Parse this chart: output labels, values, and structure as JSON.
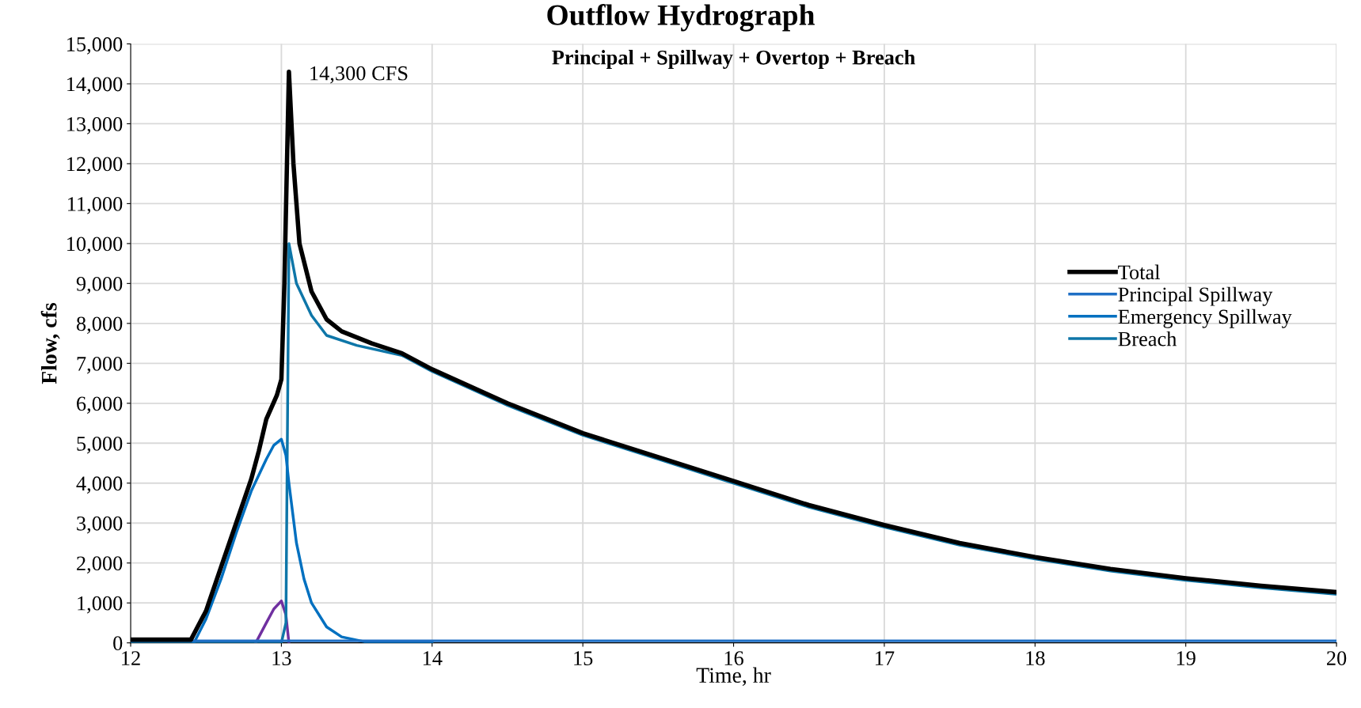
{
  "chart_data": {
    "type": "line",
    "title": "Outflow Hydrograph",
    "subtitle": "Principal + Spillway + Overtop + Breach",
    "xlabel": "Time, hr",
    "ylabel": "Flow, cfs",
    "xlim": [
      12,
      20
    ],
    "xticks": [
      12,
      13,
      14,
      15,
      16,
      17,
      18,
      19,
      20
    ],
    "ylim": [
      0,
      15000
    ],
    "yticks": [
      {
        "value": 0,
        "label": "0"
      },
      {
        "value": 1000,
        "label": "1,000"
      },
      {
        "value": 2000,
        "label": "2,000"
      },
      {
        "value": 3000,
        "label": "3,000"
      },
      {
        "value": 4000,
        "label": "4,000"
      },
      {
        "value": 5000,
        "label": "5,000"
      },
      {
        "value": 6000,
        "label": "6,000"
      },
      {
        "value": 7000,
        "label": "7,000"
      },
      {
        "value": 8000,
        "label": "8,000"
      },
      {
        "value": 9000,
        "label": "9,000"
      },
      {
        "value": 10000,
        "label": "10,000"
      },
      {
        "value": 11000,
        "label": "11,000"
      },
      {
        "value": 12000,
        "label": "12,000"
      },
      {
        "value": 13000,
        "label": "13,000"
      },
      {
        "value": 14000,
        "label": "14,000"
      },
      {
        "value": 15000,
        "label": "15,000"
      }
    ],
    "grid": true,
    "legend": "right",
    "marker": "none",
    "line_style": "solid",
    "annotations": [
      {
        "text": "14,300 CFS",
        "x": 13.05,
        "y": 14300
      }
    ],
    "series": [
      {
        "name": "Total",
        "color": "#000000",
        "x": [
          12,
          12.4,
          12.5,
          12.6,
          12.7,
          12.8,
          12.85,
          12.9,
          12.97,
          13.0,
          13.02,
          13.05,
          13.08,
          13.12,
          13.2,
          13.3,
          13.4,
          13.6,
          13.8,
          14,
          14.5,
          15,
          15.5,
          16,
          16.5,
          17,
          17.5,
          18,
          18.5,
          19,
          19.5,
          20
        ],
        "values": [
          80,
          80,
          800,
          1900,
          3000,
          4100,
          4800,
          5600,
          6200,
          6600,
          9000,
          14300,
          12000,
          10000,
          8800,
          8100,
          7800,
          7500,
          7250,
          6850,
          6000,
          5250,
          4650,
          4050,
          3450,
          2950,
          2500,
          2150,
          1850,
          1620,
          1430,
          1270
        ]
      },
      {
        "name": "Principal Spillway",
        "color": "#1f6fc5",
        "x": [
          12,
          13,
          14,
          16,
          18,
          20
        ],
        "values": [
          50,
          50,
          50,
          50,
          50,
          50
        ]
      },
      {
        "name": "Emergency Spillway",
        "color": "#0070c0",
        "x": [
          12.42,
          12.5,
          12.6,
          12.7,
          12.8,
          12.9,
          12.95,
          13.0,
          13.03,
          13.05,
          13.1,
          13.15,
          13.2,
          13.3,
          13.4,
          13.55,
          14
        ],
        "values": [
          0,
          600,
          1600,
          2750,
          3800,
          4600,
          4950,
          5100,
          4700,
          4000,
          2500,
          1600,
          1000,
          400,
          150,
          30,
          20
        ]
      },
      {
        "name": "Breach",
        "color": "#0e76a8",
        "x": [
          12,
          13.0,
          13.03,
          13.05,
          13.1,
          13.2,
          13.3,
          13.5,
          13.8,
          14,
          14.5,
          15,
          15.5,
          16,
          16.5,
          17,
          17.5,
          18,
          18.5,
          19,
          19.5,
          20
        ],
        "values": [
          0,
          0,
          500,
          10000,
          9000,
          8200,
          7700,
          7450,
          7200,
          6800,
          5950,
          5200,
          4600,
          4000,
          3400,
          2900,
          2450,
          2100,
          1800,
          1570,
          1380,
          1220
        ]
      },
      {
        "color": "#7030a0",
        "x": [
          12.83,
          12.9,
          12.95,
          13.0,
          13.03,
          13.05
        ],
        "values": [
          0,
          500,
          850,
          1050,
          700,
          0
        ]
      }
    ]
  }
}
